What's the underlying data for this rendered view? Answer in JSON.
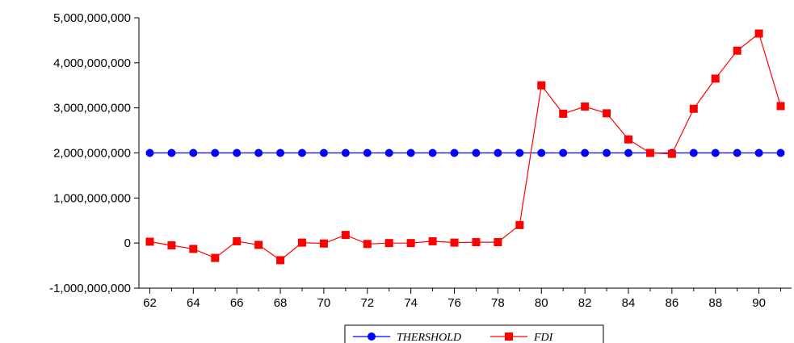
{
  "chart_data": {
    "type": "line",
    "title": "",
    "xlabel": "",
    "ylabel": "",
    "categories": [
      "62",
      "63",
      "64",
      "65",
      "66",
      "67",
      "68",
      "69",
      "70",
      "71",
      "72",
      "73",
      "74",
      "75",
      "76",
      "77",
      "78",
      "79",
      "80",
      "81",
      "82",
      "83",
      "84",
      "85",
      "86",
      "87",
      "88",
      "89",
      "90",
      "91"
    ],
    "x_tick_labels": [
      "62",
      "64",
      "66",
      "68",
      "70",
      "72",
      "74",
      "76",
      "78",
      "80",
      "82",
      "84",
      "86",
      "88",
      "90"
    ],
    "y_tick_labels": [
      "5,000,000,000",
      "4,000,000,000",
      "3,000,000,000",
      "2,000,000,000",
      "1,000,000,000",
      "0",
      "-1,000,000,000"
    ],
    "y_ticks": [
      5000000000,
      4000000000,
      3000000000,
      2000000000,
      1000000000,
      0,
      -1000000000
    ],
    "ylim": [
      -1000000000,
      5000000000
    ],
    "grid": false,
    "legend_position": "bottom-center",
    "series": [
      {
        "name": "THERSHOLD",
        "color": "#0000ff",
        "marker": "circle",
        "values": [
          2000000000,
          2000000000,
          2000000000,
          2000000000,
          2000000000,
          2000000000,
          2000000000,
          2000000000,
          2000000000,
          2000000000,
          2000000000,
          2000000000,
          2000000000,
          2000000000,
          2000000000,
          2000000000,
          2000000000,
          2000000000,
          2000000000,
          2000000000,
          2000000000,
          2000000000,
          2000000000,
          2000000000,
          2000000000,
          2000000000,
          2000000000,
          2000000000,
          2000000000,
          2000000000
        ]
      },
      {
        "name": "FDI",
        "color": "#ff0000",
        "marker": "square",
        "values": [
          30000000,
          -50000000,
          -130000000,
          -330000000,
          40000000,
          -40000000,
          -380000000,
          10000000,
          -10000000,
          180000000,
          -20000000,
          0,
          0,
          40000000,
          10000000,
          20000000,
          20000000,
          400000000,
          3500000000,
          2870000000,
          3030000000,
          2880000000,
          2300000000,
          2000000000,
          1980000000,
          2980000000,
          3650000000,
          4270000000,
          4650000000,
          3040000000
        ]
      }
    ]
  }
}
